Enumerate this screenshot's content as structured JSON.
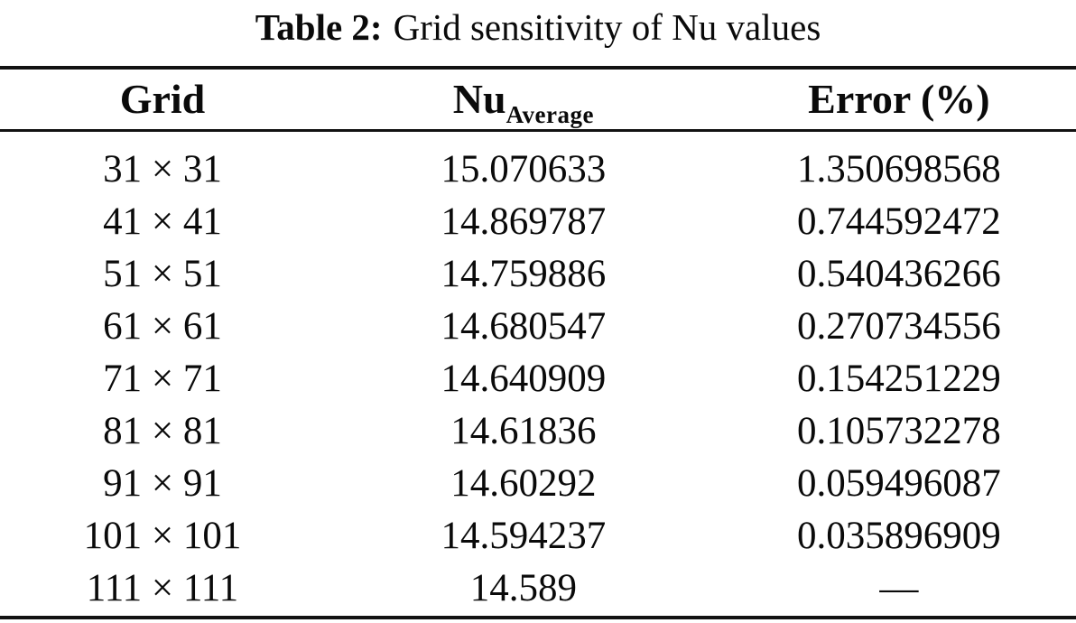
{
  "caption": {
    "label": "Table 2:",
    "text": "Grid sensitivity of Nu values"
  },
  "header": {
    "grid": "Grid",
    "nu_base": "Nu",
    "nu_subscript": "Average",
    "error": "Error (%)"
  },
  "rows": [
    {
      "grid": "31 × 31",
      "nu": "15.070633",
      "error": "1.350698568"
    },
    {
      "grid": "41 × 41",
      "nu": "14.869787",
      "error": "0.744592472"
    },
    {
      "grid": "51 × 51",
      "nu": "14.759886",
      "error": "0.540436266"
    },
    {
      "grid": "61 × 61",
      "nu": "14.680547",
      "error": "0.270734556"
    },
    {
      "grid": "71 × 71",
      "nu": "14.640909",
      "error": "0.154251229"
    },
    {
      "grid": "81 × 81",
      "nu": "14.61836",
      "error": "0.105732278"
    },
    {
      "grid": "91 × 91",
      "nu": "14.60292",
      "error": "0.059496087"
    },
    {
      "grid": "101 × 101",
      "nu": "14.594237",
      "error": "0.035896909"
    },
    {
      "grid": "111 × 111",
      "nu": "14.589",
      "error": "—"
    }
  ],
  "colors": {
    "background": "#ffffff",
    "text": "#0a0a0a",
    "rule": "#121212"
  }
}
